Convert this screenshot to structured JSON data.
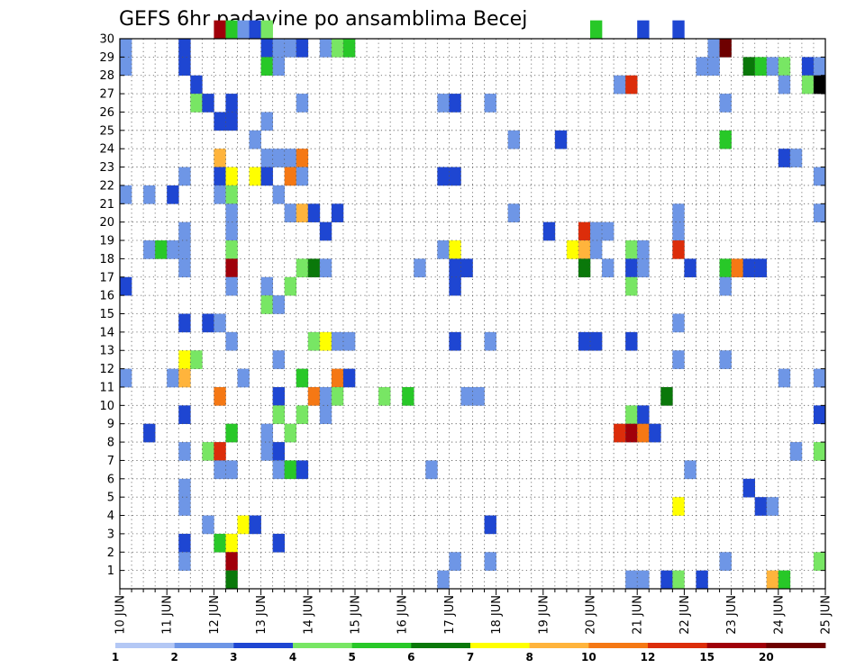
{
  "chart_data": {
    "type": "heatmap",
    "title": "GEFS 6hr padavine po ansamblima Becej",
    "x_tick_labels": [
      "10 JUN",
      "11 JUN",
      "12 JUN",
      "13 JUN",
      "14 JUN",
      "15 JUN",
      "16 JUN",
      "17 JUN",
      "18 JUN",
      "19 JUN",
      "20 JUN",
      "21 JUN",
      "22 JUN",
      "23 JUN",
      "24 JUN",
      "25 JUN"
    ],
    "x_steps_per_day": 4,
    "x_range": [
      0,
      60
    ],
    "y_tick_labels": [
      "1",
      "2",
      "3",
      "4",
      "5",
      "6",
      "7",
      "8",
      "9",
      "10",
      "11",
      "12",
      "13",
      "14",
      "15",
      "16",
      "17",
      "18",
      "19",
      "20",
      "21",
      "22",
      "23",
      "24",
      "25",
      "26",
      "27",
      "28",
      "29",
      "30"
    ],
    "y_range": [
      0,
      30
    ],
    "grid": true,
    "colorbar": {
      "labels": [
        "1",
        "2",
        "3",
        "4",
        "5",
        "6",
        "7",
        "8",
        "10",
        "12",
        "15",
        "20"
      ],
      "colors": [
        "#b4c8f5",
        "#6e96e6",
        "#1e46d2",
        "#78e664",
        "#28c828",
        "#0a780a",
        "#ffff00",
        "#ffb43c",
        "#f57814",
        "#dc2d0a",
        "#a0000a",
        "#6e0000"
      ]
    },
    "cells": [
      [
        8,
        30,
        10
      ],
      [
        9,
        30,
        4
      ],
      [
        10,
        30,
        1
      ],
      [
        11,
        30,
        2
      ],
      [
        12,
        30,
        3
      ],
      [
        40,
        30,
        4
      ],
      [
        44,
        30,
        2
      ],
      [
        47,
        30,
        2
      ],
      [
        0,
        29,
        1
      ],
      [
        5,
        29,
        2
      ],
      [
        12,
        29,
        2
      ],
      [
        13,
        29,
        1
      ],
      [
        14,
        29,
        1
      ],
      [
        15,
        29,
        2
      ],
      [
        17,
        29,
        1
      ],
      [
        18,
        29,
        3
      ],
      [
        19,
        29,
        4
      ],
      [
        50,
        29,
        1
      ],
      [
        51,
        29,
        11
      ],
      [
        0,
        28,
        1
      ],
      [
        5,
        28,
        2
      ],
      [
        12,
        28,
        4
      ],
      [
        13,
        28,
        1
      ],
      [
        49,
        28,
        1
      ],
      [
        50,
        28,
        1
      ],
      [
        53,
        28,
        5
      ],
      [
        54,
        28,
        4
      ],
      [
        55,
        28,
        1
      ],
      [
        56,
        28,
        3
      ],
      [
        58,
        28,
        2
      ],
      [
        59,
        28,
        1
      ],
      [
        6,
        27,
        2
      ],
      [
        42,
        27,
        1
      ],
      [
        43,
        27,
        9
      ],
      [
        56,
        27,
        1
      ],
      [
        58,
        27,
        3
      ],
      [
        59,
        27,
        12
      ],
      [
        6,
        26,
        3
      ],
      [
        7,
        26,
        2
      ],
      [
        9,
        26,
        2
      ],
      [
        15,
        26,
        1
      ],
      [
        27,
        26,
        1
      ],
      [
        28,
        26,
        2
      ],
      [
        31,
        26,
        1
      ],
      [
        51,
        26,
        1
      ],
      [
        8,
        25,
        2
      ],
      [
        9,
        25,
        2
      ],
      [
        12,
        25,
        1
      ],
      [
        11,
        24,
        1
      ],
      [
        33,
        24,
        1
      ],
      [
        37,
        24,
        2
      ],
      [
        51,
        24,
        4
      ],
      [
        8,
        23,
        7
      ],
      [
        12,
        23,
        1
      ],
      [
        13,
        23,
        1
      ],
      [
        14,
        23,
        1
      ],
      [
        15,
        23,
        8
      ],
      [
        56,
        23,
        2
      ],
      [
        57,
        23,
        1
      ],
      [
        5,
        22,
        1
      ],
      [
        8,
        22,
        2
      ],
      [
        9,
        22,
        6
      ],
      [
        11,
        22,
        6
      ],
      [
        12,
        22,
        2
      ],
      [
        14,
        22,
        8
      ],
      [
        15,
        22,
        1
      ],
      [
        27,
        22,
        2
      ],
      [
        28,
        22,
        2
      ],
      [
        59,
        22,
        1
      ],
      [
        0,
        21,
        1
      ],
      [
        2,
        21,
        1
      ],
      [
        4,
        21,
        2
      ],
      [
        8,
        21,
        1
      ],
      [
        9,
        21,
        3
      ],
      [
        13,
        21,
        1
      ],
      [
        9,
        20,
        1
      ],
      [
        14,
        20,
        1
      ],
      [
        15,
        20,
        7
      ],
      [
        16,
        20,
        2
      ],
      [
        18,
        20,
        2
      ],
      [
        33,
        20,
        1
      ],
      [
        47,
        20,
        1
      ],
      [
        59,
        20,
        1
      ],
      [
        5,
        19,
        1
      ],
      [
        9,
        19,
        1
      ],
      [
        17,
        19,
        2
      ],
      [
        36,
        19,
        2
      ],
      [
        39,
        19,
        9
      ],
      [
        40,
        19,
        1
      ],
      [
        41,
        19,
        1
      ],
      [
        47,
        19,
        1
      ],
      [
        2,
        18,
        1
      ],
      [
        3,
        18,
        4
      ],
      [
        4,
        18,
        1
      ],
      [
        5,
        18,
        1
      ],
      [
        9,
        18,
        3
      ],
      [
        27,
        18,
        1
      ],
      [
        28,
        18,
        6
      ],
      [
        38,
        18,
        6
      ],
      [
        39,
        18,
        7
      ],
      [
        40,
        18,
        1
      ],
      [
        43,
        18,
        3
      ],
      [
        44,
        18,
        1
      ],
      [
        47,
        18,
        9
      ],
      [
        5,
        17,
        1
      ],
      [
        9,
        17,
        10
      ],
      [
        15,
        17,
        3
      ],
      [
        16,
        17,
        5
      ],
      [
        17,
        17,
        1
      ],
      [
        25,
        17,
        1
      ],
      [
        28,
        17,
        2
      ],
      [
        29,
        17,
        2
      ],
      [
        39,
        17,
        5
      ],
      [
        41,
        17,
        1
      ],
      [
        43,
        17,
        2
      ],
      [
        44,
        17,
        1
      ],
      [
        48,
        17,
        2
      ],
      [
        51,
        17,
        4
      ],
      [
        52,
        17,
        8
      ],
      [
        53,
        17,
        2
      ],
      [
        54,
        17,
        2
      ],
      [
        0,
        16,
        2
      ],
      [
        9,
        16,
        1
      ],
      [
        12,
        16,
        1
      ],
      [
        14,
        16,
        3
      ],
      [
        28,
        16,
        2
      ],
      [
        43,
        16,
        3
      ],
      [
        51,
        16,
        1
      ],
      [
        12,
        15,
        3
      ],
      [
        13,
        15,
        1
      ],
      [
        5,
        14,
        2
      ],
      [
        7,
        14,
        2
      ],
      [
        8,
        14,
        1
      ],
      [
        47,
        14,
        1
      ],
      [
        9,
        13,
        1
      ],
      [
        16,
        13,
        3
      ],
      [
        17,
        13,
        6
      ],
      [
        18,
        13,
        1
      ],
      [
        19,
        13,
        1
      ],
      [
        28,
        13,
        2
      ],
      [
        31,
        13,
        1
      ],
      [
        39,
        13,
        2
      ],
      [
        40,
        13,
        2
      ],
      [
        43,
        13,
        2
      ],
      [
        5,
        12,
        6
      ],
      [
        6,
        12,
        3
      ],
      [
        13,
        12,
        1
      ],
      [
        47,
        12,
        1
      ],
      [
        51,
        12,
        1
      ],
      [
        0,
        11,
        1
      ],
      [
        4,
        11,
        1
      ],
      [
        5,
        11,
        7
      ],
      [
        10,
        11,
        1
      ],
      [
        15,
        11,
        4
      ],
      [
        18,
        11,
        8
      ],
      [
        19,
        11,
        2
      ],
      [
        56,
        11,
        1
      ],
      [
        59,
        11,
        1
      ],
      [
        8,
        10,
        8
      ],
      [
        13,
        10,
        2
      ],
      [
        16,
        10,
        8
      ],
      [
        17,
        10,
        1
      ],
      [
        18,
        10,
        3
      ],
      [
        22,
        10,
        3
      ],
      [
        24,
        10,
        4
      ],
      [
        29,
        10,
        1
      ],
      [
        30,
        10,
        1
      ],
      [
        46,
        10,
        5
      ],
      [
        5,
        9,
        2
      ],
      [
        13,
        9,
        3
      ],
      [
        15,
        9,
        3
      ],
      [
        17,
        9,
        1
      ],
      [
        43,
        9,
        3
      ],
      [
        44,
        9,
        2
      ],
      [
        59,
        9,
        2
      ],
      [
        2,
        8,
        2
      ],
      [
        9,
        8,
        4
      ],
      [
        12,
        8,
        1
      ],
      [
        14,
        8,
        3
      ],
      [
        42,
        8,
        9
      ],
      [
        43,
        8,
        10
      ],
      [
        44,
        8,
        8
      ],
      [
        45,
        8,
        2
      ],
      [
        5,
        7,
        1
      ],
      [
        7,
        7,
        3
      ],
      [
        8,
        7,
        9
      ],
      [
        12,
        7,
        1
      ],
      [
        13,
        7,
        2
      ],
      [
        57,
        7,
        1
      ],
      [
        59,
        7,
        3
      ],
      [
        8,
        6,
        1
      ],
      [
        9,
        6,
        1
      ],
      [
        13,
        6,
        1
      ],
      [
        14,
        6,
        4
      ],
      [
        15,
        6,
        2
      ],
      [
        26,
        6,
        1
      ],
      [
        48,
        6,
        1
      ],
      [
        5,
        5,
        1
      ],
      [
        53,
        5,
        2
      ],
      [
        5,
        4,
        1
      ],
      [
        47,
        4,
        6
      ],
      [
        54,
        4,
        2
      ],
      [
        55,
        4,
        1
      ],
      [
        7,
        3,
        1
      ],
      [
        10,
        3,
        6
      ],
      [
        11,
        3,
        2
      ],
      [
        31,
        3,
        2
      ],
      [
        5,
        2,
        2
      ],
      [
        8,
        2,
        4
      ],
      [
        9,
        2,
        6
      ],
      [
        13,
        2,
        2
      ],
      [
        5,
        1,
        1
      ],
      [
        9,
        1,
        10
      ],
      [
        28,
        1,
        1
      ],
      [
        31,
        1,
        1
      ],
      [
        51,
        1,
        1
      ],
      [
        59,
        1,
        3
      ],
      [
        9,
        0,
        5
      ],
      [
        27,
        0,
        1
      ],
      [
        43,
        0,
        1
      ],
      [
        44,
        0,
        1
      ],
      [
        46,
        0,
        2
      ],
      [
        47,
        0,
        3
      ],
      [
        49,
        0,
        2
      ],
      [
        55,
        0,
        7
      ],
      [
        56,
        0,
        4
      ]
    ]
  }
}
